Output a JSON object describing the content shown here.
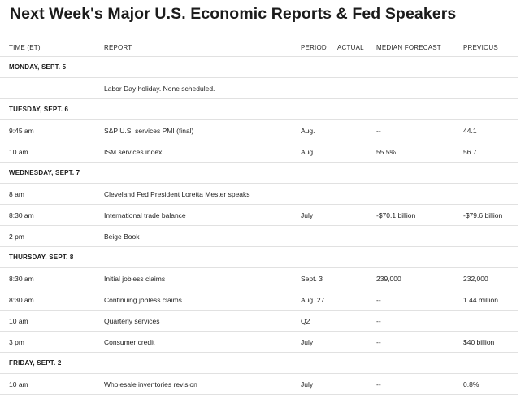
{
  "title": "Next Week's Major U.S. Economic Reports & Fed Speakers",
  "columns": {
    "time": "TIME (ET)",
    "report": "REPORT",
    "period": "PERIOD",
    "actual": "ACTUAL",
    "forecast": "MEDIAN FORECAST",
    "previous": "PREVIOUS"
  },
  "days": [
    {
      "label": "MONDAY, SEPT. 5",
      "rows": [
        {
          "time": "",
          "report": "Labor Day holiday. None scheduled.",
          "period": "",
          "actual": "",
          "forecast": "",
          "previous": ""
        }
      ]
    },
    {
      "label": "TUESDAY, SEPT. 6",
      "rows": [
        {
          "time": "9:45 am",
          "report": "S&P U.S. services PMI (final)",
          "period": "Aug.",
          "actual": "",
          "forecast": "--",
          "previous": "44.1"
        },
        {
          "time": "10 am",
          "report": "ISM services index",
          "period": "Aug.",
          "actual": "",
          "forecast": "55.5%",
          "previous": "56.7"
        }
      ]
    },
    {
      "label": "WEDNESDAY, SEPT. 7",
      "rows": [
        {
          "time": "8 am",
          "report": "Cleveland Fed President Loretta Mester speaks",
          "period": "",
          "actual": "",
          "forecast": "",
          "previous": ""
        },
        {
          "time": "8:30 am",
          "report": "International trade balance",
          "period": "July",
          "actual": "",
          "forecast": "-$70.1 billion",
          "previous": "-$79.6 billion"
        },
        {
          "time": "2 pm",
          "report": "Beige Book",
          "period": "",
          "actual": "",
          "forecast": "",
          "previous": ""
        }
      ]
    },
    {
      "label": "THURSDAY, SEPT. 8",
      "rows": [
        {
          "time": "8:30 am",
          "report": "Initial jobless claims",
          "period": "Sept. 3",
          "actual": "",
          "forecast": "239,000",
          "previous": "232,000"
        },
        {
          "time": "8:30 am",
          "report": "Continuing jobless claims",
          "period": "Aug. 27",
          "actual": "",
          "forecast": "--",
          "previous": "1.44 million"
        },
        {
          "time": "10 am",
          "report": "Quarterly services",
          "period": "Q2",
          "actual": "",
          "forecast": "--",
          "previous": ""
        },
        {
          "time": "3 pm",
          "report": "Consumer credit",
          "period": "July",
          "actual": "",
          "forecast": "--",
          "previous": "$40 billion"
        }
      ]
    },
    {
      "label": "FRIDAY, SEPT. 2",
      "rows": [
        {
          "time": "10 am",
          "report": "Wholesale inventories revision",
          "period": "July",
          "actual": "",
          "forecast": "--",
          "previous": "0.8%"
        }
      ]
    }
  ]
}
